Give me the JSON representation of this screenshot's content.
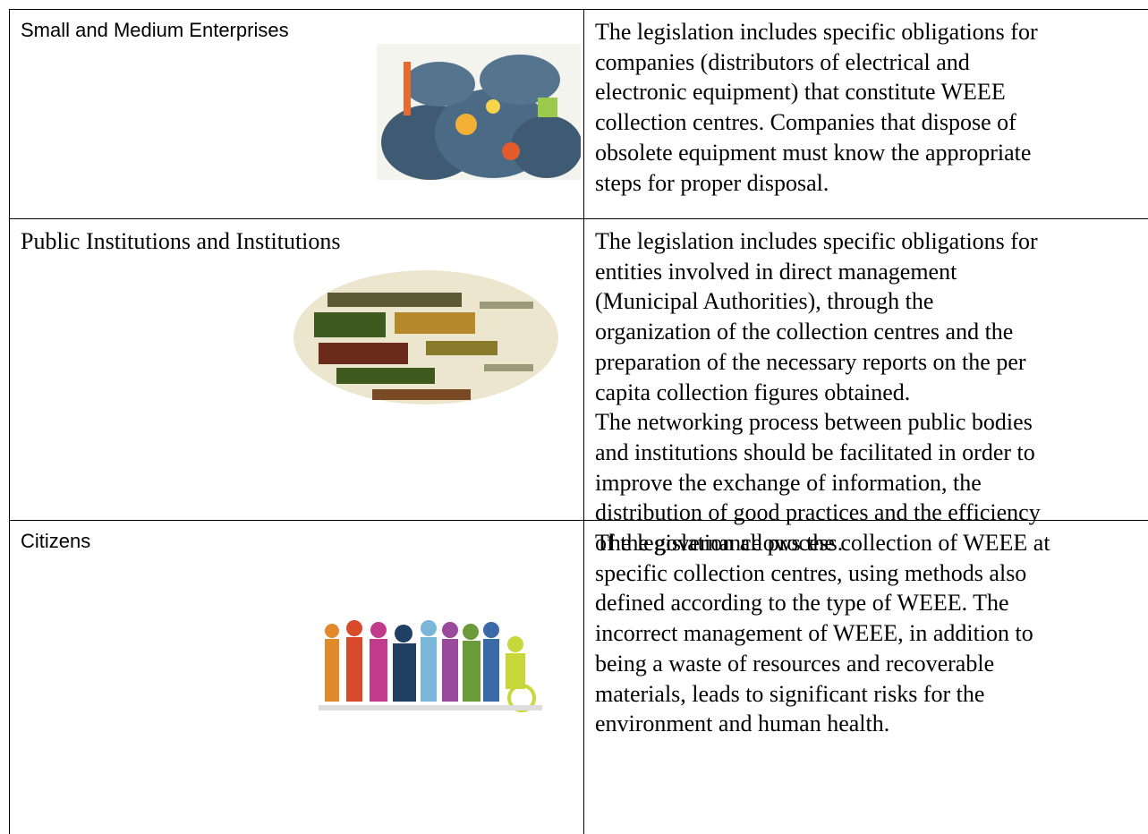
{
  "table": {
    "rows": [
      {
        "label": "Small and Medium Enterprises",
        "lines": [
          "The legislation includes specific obligations for",
          "companies (distributors of electrical and",
          "electronic equipment) that constitute WEEE",
          "collection centres. Companies that dispose of",
          "obsolete equipment must know the appropriate",
          "steps for proper disposal."
        ]
      },
      {
        "label": "Public Institutions and Institutions",
        "lines": [
          "The legislation includes specific obligations for",
          "entities involved in direct management",
          "(Municipal Authorities), through the",
          "organization of the collection centres and the",
          "preparation of the necessary reports on the per",
          "capita collection figures obtained.",
          "The networking process between public bodies",
          "and institutions should be facilitated in order to",
          "improve the exchange of information, the",
          "distribution of good practices and the efficiency",
          "of the governance process."
        ]
      },
      {
        "label": "Citizens",
        "lines": [
          "The legislation allows the collection of WEEE at",
          "specific collection centres, using methods also",
          "defined according to the type of WEEE. The",
          "incorrect management of WEEE, in addition to",
          "being a waste of resources and recoverable",
          "materials, leads to significant risks for the",
          "environment and human health."
        ]
      }
    ]
  }
}
